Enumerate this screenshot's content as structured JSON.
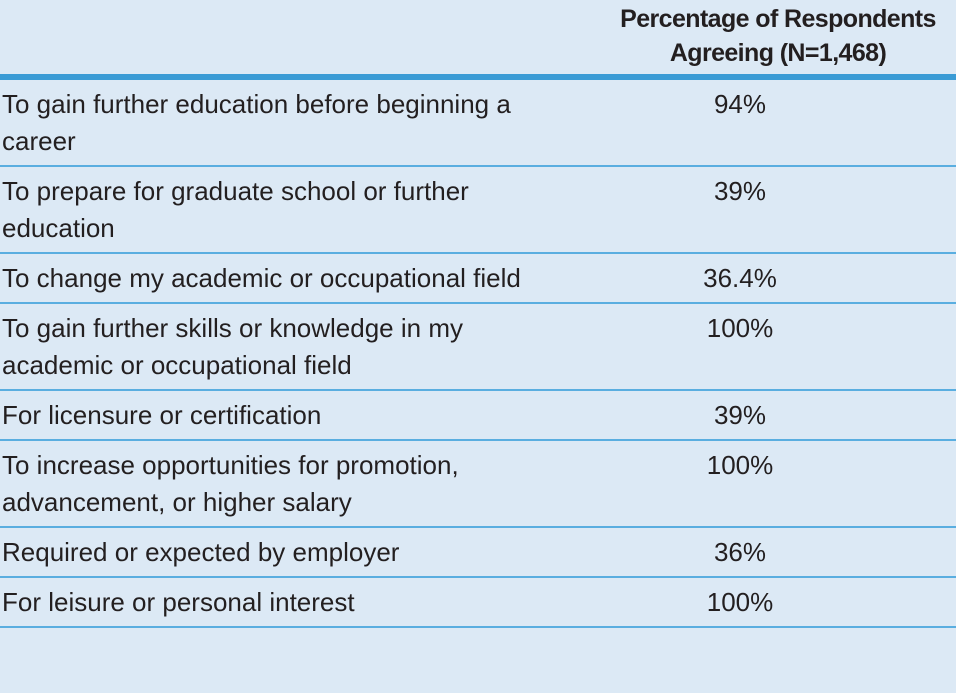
{
  "table": {
    "header": {
      "lines": [
        "Percentage of Respondents",
        "Agreeing (N=1,468)"
      ]
    },
    "rows": [
      [
        "To gain further education before beginning a career",
        "94%"
      ],
      [
        "To prepare for graduate school or further education",
        "39%"
      ],
      [
        "To change my academic or occupational field",
        "36.4%"
      ],
      [
        "To gain further skills or knowledge in my academic or occupational field",
        "100%"
      ],
      [
        "For licensure or certification",
        "39%"
      ],
      [
        "To increase opportunities for promotion, advancement, or higher salary",
        "100%"
      ],
      [
        "Required or expected by employer",
        "36%"
      ],
      [
        "For leisure or personal interest",
        "100%"
      ]
    ]
  }
}
